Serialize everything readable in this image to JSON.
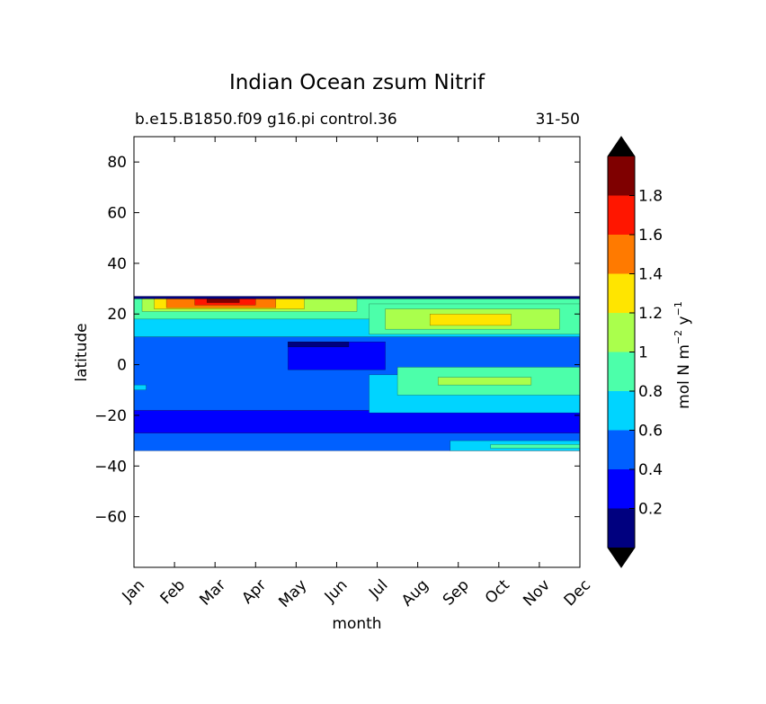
{
  "chart_data": {
    "type": "heatmap",
    "title": "Indian Ocean zsum Nitrif",
    "subtitle_left": "b.e15.B1850.f09 g16.pi control.36",
    "subtitle_right": "31-50",
    "xlabel": "month",
    "ylabel": "latitude",
    "x_tick_labels": [
      "Jan",
      "Feb",
      "Mar",
      "Apr",
      "May",
      "Jun",
      "Jul",
      "Aug",
      "Sep",
      "Oct",
      "Nov",
      "Dec"
    ],
    "y_ticks": [
      80,
      60,
      40,
      20,
      0,
      -20,
      -40,
      -60
    ],
    "y_tick_labels": [
      "80",
      "60",
      "40",
      "20",
      "0",
      "−20",
      "−40",
      "−60"
    ],
    "ylim": [
      -80,
      90
    ],
    "data_lat_range": [
      -34,
      27
    ],
    "colorbar": {
      "label_main": "mol N m",
      "label_exp1": "−2",
      "label_mid": " y",
      "label_exp2": "−1",
      "levels": [
        0,
        0.2,
        0.4,
        0.6,
        0.8,
        1.0,
        1.2,
        1.4,
        1.6,
        1.8,
        2.0
      ],
      "tick_values": [
        0.2,
        0.4,
        0.6,
        0.8,
        1.0,
        1.2,
        1.4,
        1.6,
        1.8
      ],
      "tick_labels": [
        "0.2",
        "0.4",
        "0.6",
        "0.8",
        "1",
        "1.2",
        "1.4",
        "1.6",
        "1.8"
      ],
      "colors": [
        "#00007f",
        "#0000ff",
        "#0060ff",
        "#00d4ff",
        "#4cffaa",
        "#aaff4c",
        "#ffe500",
        "#ff7a00",
        "#ff1600",
        "#7f0000"
      ],
      "extend": "both",
      "extend_low_color": "#000000",
      "extend_high_color": "#000000"
    },
    "regions": [
      {
        "name": "band-deep-south",
        "lat": [
          -34,
          -27
        ],
        "month": [
          0,
          11
        ],
        "value": 0.5
      },
      {
        "name": "band-south-low",
        "lat": [
          -27,
          -18
        ],
        "month": [
          0,
          11
        ],
        "value": 0.3
      },
      {
        "name": "band-mid",
        "lat": [
          -18,
          11
        ],
        "month": [
          0,
          11
        ],
        "value": 0.5
      },
      {
        "name": "band-north",
        "lat": [
          11,
          25
        ],
        "month": [
          0,
          11
        ],
        "value": 0.7
      },
      {
        "name": "patch-sep-oct-south",
        "lat": [
          -34,
          -30
        ],
        "month": [
          7.8,
          11
        ],
        "value": 0.7
      },
      {
        "name": "patch-oct-south",
        "lat": [
          -33,
          -31.5
        ],
        "month": [
          8.8,
          11
        ],
        "value": 0.9
      },
      {
        "name": "patch-equatorial-west",
        "lat": [
          -10,
          -8
        ],
        "month": [
          0,
          0.3
        ],
        "value": 0.7
      },
      {
        "name": "patch-equatorial",
        "lat": [
          -19,
          -4
        ],
        "month": [
          5.8,
          11
        ],
        "value": 0.7
      },
      {
        "name": "patch-equatorial-core",
        "lat": [
          -12,
          -1
        ],
        "month": [
          6.5,
          11
        ],
        "value": 0.9
      },
      {
        "name": "patch-equatorial-max",
        "lat": [
          -8,
          -5
        ],
        "month": [
          7.5,
          9.8
        ],
        "value": 1.1
      },
      {
        "name": "patch-may-low",
        "lat": [
          -2,
          9
        ],
        "month": [
          3.8,
          6.2
        ],
        "value": 0.3
      },
      {
        "name": "patch-may-min",
        "lat": [
          7,
          9
        ],
        "month": [
          3.8,
          5.3
        ],
        "value": 0.1
      },
      {
        "name": "band-north-upper",
        "lat": [
          18,
          26
        ],
        "month": [
          0,
          11
        ],
        "value": 0.9
      },
      {
        "name": "patch-aug-north",
        "lat": [
          12,
          24
        ],
        "month": [
          5.8,
          11
        ],
        "value": 0.9
      },
      {
        "name": "patch-aug-north-core",
        "lat": [
          14,
          22
        ],
        "month": [
          6.2,
          10.5
        ],
        "value": 1.1
      },
      {
        "name": "patch-aug-north-max",
        "lat": [
          15.5,
          20
        ],
        "month": [
          7.3,
          9.3
        ],
        "value": 1.3
      },
      {
        "name": "patch-march-high",
        "lat": [
          21,
          26
        ],
        "month": [
          0.2,
          5.5
        ],
        "value": 1.1
      },
      {
        "name": "patch-march-higher",
        "lat": [
          22,
          26
        ],
        "month": [
          0.5,
          4.2
        ],
        "value": 1.3
      },
      {
        "name": "patch-march-peak",
        "lat": [
          22.5,
          26
        ],
        "month": [
          0.8,
          3.5
        ],
        "value": 1.5
      },
      {
        "name": "patch-march-max",
        "lat": [
          23.5,
          26
        ],
        "month": [
          1.5,
          3.0
        ],
        "value": 1.7
      },
      {
        "name": "patch-march-top",
        "lat": [
          24.5,
          26.5
        ],
        "month": [
          1.8,
          2.6
        ],
        "value": 1.9
      },
      {
        "name": "band-northern-edge",
        "lat": [
          26,
          27
        ],
        "month": [
          0,
          11
        ],
        "value": 0.1
      }
    ]
  }
}
